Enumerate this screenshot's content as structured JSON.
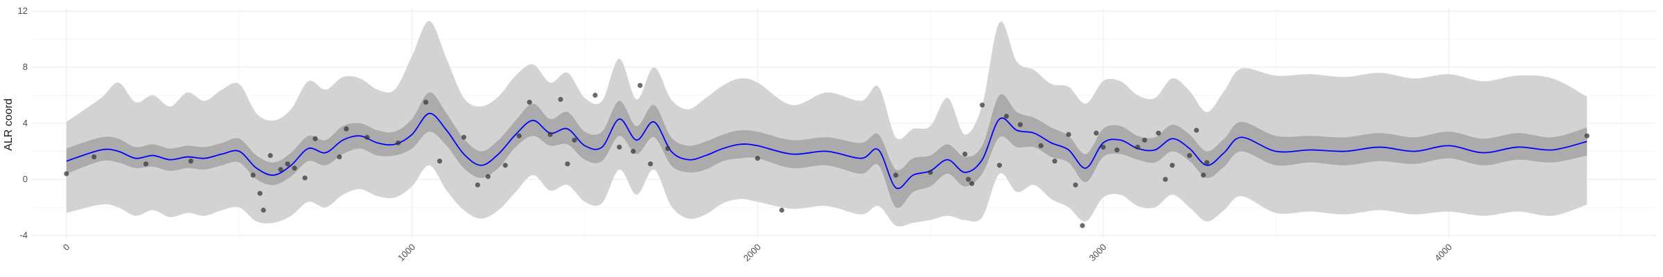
{
  "chart_data": {
    "type": "line",
    "title": "",
    "xlabel": "",
    "ylabel": "ALR coord",
    "xlim": [
      -100,
      4600
    ],
    "ylim": [
      -4.2,
      12.2
    ],
    "x_ticks": [
      0,
      1000,
      2000,
      3000,
      4000
    ],
    "y_ticks": [
      -4,
      0,
      4,
      8,
      12
    ],
    "grid": true,
    "colors": {
      "median_line": "#0000ff",
      "inner_band": "#ababab",
      "outer_band": "#d3d3d3",
      "points": "#333333"
    },
    "series": [
      {
        "role": "median",
        "x": [
          0,
          100,
          150,
          200,
          250,
          300,
          350,
          400,
          450,
          500,
          550,
          600,
          650,
          700,
          750,
          800,
          850,
          900,
          950,
          1000,
          1050,
          1100,
          1150,
          1200,
          1250,
          1300,
          1350,
          1400,
          1450,
          1500,
          1550,
          1600,
          1650,
          1700,
          1750,
          1800,
          1850,
          1900,
          1950,
          2000,
          2100,
          2200,
          2300,
          2350,
          2400,
          2450,
          2500,
          2550,
          2600,
          2650,
          2700,
          2750,
          2800,
          2850,
          2900,
          2950,
          3000,
          3050,
          3100,
          3150,
          3200,
          3250,
          3300,
          3350,
          3400,
          3500,
          3600,
          3700,
          3800,
          3900,
          4000,
          4100,
          4200,
          4300,
          4400
        ],
        "y": [
          1.3,
          2.1,
          2.0,
          1.5,
          1.7,
          1.4,
          1.6,
          1.5,
          1.8,
          2.0,
          0.8,
          0.3,
          1.0,
          2.2,
          1.9,
          2.8,
          3.1,
          2.6,
          2.5,
          3.2,
          4.7,
          3.5,
          1.8,
          1.0,
          1.8,
          3.2,
          4.2,
          3.3,
          3.6,
          2.4,
          2.3,
          4.3,
          2.8,
          4.1,
          2.0,
          1.4,
          1.7,
          2.2,
          2.5,
          2.4,
          1.8,
          2.0,
          1.5,
          2.1,
          -0.6,
          0.3,
          0.6,
          1.4,
          0.5,
          1.4,
          4.3,
          3.5,
          3.3,
          2.6,
          2.1,
          0.8,
          2.6,
          2.8,
          2.2,
          2.1,
          2.9,
          2.2,
          1.0,
          1.9,
          3.0,
          2.0,
          2.1,
          2.0,
          2.3,
          2.0,
          2.4,
          1.9,
          2.3,
          2.1,
          2.7
        ]
      },
      {
        "role": "inner_interval",
        "x": [
          0,
          100,
          150,
          200,
          250,
          300,
          350,
          400,
          450,
          500,
          550,
          600,
          650,
          700,
          750,
          800,
          850,
          900,
          950,
          1000,
          1050,
          1100,
          1150,
          1200,
          1250,
          1300,
          1350,
          1400,
          1450,
          1500,
          1550,
          1600,
          1650,
          1700,
          1750,
          1800,
          1850,
          1900,
          1950,
          2000,
          2100,
          2200,
          2300,
          2350,
          2400,
          2450,
          2500,
          2550,
          2600,
          2650,
          2700,
          2750,
          2800,
          2850,
          2900,
          2950,
          3000,
          3050,
          3100,
          3150,
          3200,
          3250,
          3300,
          3350,
          3400,
          3500,
          3600,
          3700,
          3800,
          3900,
          4000,
          4100,
          4200,
          4300,
          4400
        ],
        "low": [
          0.4,
          1.3,
          1.2,
          0.8,
          0.9,
          0.6,
          0.8,
          0.7,
          1.0,
          1.2,
          0.0,
          -0.4,
          0.2,
          1.3,
          1.0,
          1.8,
          2.2,
          1.7,
          1.7,
          2.2,
          3.4,
          2.4,
          0.8,
          0.1,
          0.8,
          2.3,
          3.1,
          2.4,
          2.5,
          1.4,
          1.3,
          3.1,
          1.8,
          3.0,
          1.0,
          0.5,
          0.7,
          1.3,
          1.5,
          1.5,
          0.8,
          1.0,
          0.4,
          1.0,
          -2.0,
          -0.9,
          -0.5,
          0.4,
          -0.5,
          0.4,
          3.0,
          2.3,
          2.3,
          1.6,
          1.2,
          -0.2,
          1.6,
          1.8,
          1.4,
          1.2,
          2.0,
          1.3,
          0.1,
          0.9,
          2.0,
          1.0,
          1.2,
          1.0,
          1.3,
          1.1,
          1.5,
          1.0,
          1.4,
          1.2,
          1.7
        ],
        "high": [
          2.2,
          3.0,
          2.9,
          2.3,
          2.5,
          2.2,
          2.4,
          2.3,
          2.6,
          2.9,
          1.7,
          1.2,
          1.9,
          3.1,
          2.8,
          3.8,
          4.0,
          3.5,
          3.4,
          4.3,
          6.2,
          4.7,
          2.9,
          2.0,
          2.8,
          4.2,
          5.4,
          4.3,
          4.8,
          3.4,
          3.4,
          5.6,
          3.8,
          5.3,
          3.0,
          2.4,
          2.7,
          3.2,
          3.5,
          3.4,
          2.8,
          3.0,
          2.6,
          3.2,
          0.7,
          1.5,
          1.7,
          2.5,
          1.6,
          2.4,
          6.0,
          4.8,
          4.4,
          3.7,
          3.1,
          1.8,
          3.6,
          3.8,
          3.1,
          3.0,
          3.9,
          3.2,
          2.0,
          2.9,
          4.1,
          3.1,
          3.1,
          3.0,
          3.3,
          3.0,
          3.4,
          2.9,
          3.3,
          3.0,
          3.7
        ]
      },
      {
        "role": "outer_interval",
        "x": [
          0,
          100,
          150,
          200,
          250,
          300,
          350,
          400,
          450,
          500,
          550,
          600,
          650,
          700,
          750,
          800,
          850,
          900,
          950,
          1000,
          1050,
          1100,
          1150,
          1200,
          1250,
          1300,
          1350,
          1400,
          1450,
          1500,
          1550,
          1600,
          1650,
          1700,
          1750,
          1800,
          1850,
          1900,
          1950,
          2000,
          2100,
          2200,
          2300,
          2350,
          2400,
          2450,
          2500,
          2550,
          2600,
          2650,
          2700,
          2750,
          2800,
          2850,
          2900,
          2950,
          3000,
          3050,
          3100,
          3150,
          3200,
          3250,
          3300,
          3350,
          3400,
          3500,
          3600,
          3700,
          3800,
          3900,
          4000,
          4100,
          4200,
          4300,
          4400
        ],
        "low": [
          -2.4,
          -1.8,
          -2.0,
          -2.6,
          -2.2,
          -2.7,
          -2.4,
          -2.6,
          -2.2,
          -2.0,
          -3.0,
          -3.1,
          -2.6,
          -1.6,
          -2.0,
          -1.1,
          -0.7,
          -1.2,
          -1.3,
          -0.5,
          1.0,
          -0.8,
          -2.2,
          -2.8,
          -2.2,
          -0.9,
          0.3,
          -0.8,
          -0.4,
          -1.6,
          -1.7,
          0.7,
          -1.1,
          0.7,
          -1.9,
          -2.8,
          -2.5,
          -1.7,
          -1.4,
          -1.6,
          -2.1,
          -1.9,
          -2.5,
          -1.9,
          -3.3,
          -3.1,
          -2.9,
          -2.6,
          -2.9,
          -2.7,
          0.4,
          -0.9,
          -0.4,
          -1.4,
          -2.0,
          -3.0,
          -1.3,
          -1.1,
          -1.9,
          -2.0,
          -1.1,
          -2.0,
          -3.0,
          -2.2,
          -1.2,
          -2.4,
          -2.3,
          -2.5,
          -2.2,
          -2.5,
          -2.3,
          -2.6,
          -2.3,
          -2.6,
          -1.8
        ],
        "high": [
          4.1,
          5.8,
          6.9,
          5.5,
          6.0,
          5.2,
          6.2,
          5.6,
          6.4,
          6.8,
          4.7,
          4.2,
          5.0,
          7.0,
          6.4,
          7.3,
          7.2,
          6.4,
          6.4,
          8.8,
          11.3,
          8.6,
          5.8,
          5.2,
          5.9,
          7.4,
          8.2,
          6.9,
          7.6,
          5.8,
          5.6,
          8.6,
          5.7,
          8.0,
          5.7,
          5.0,
          5.8,
          6.7,
          7.2,
          6.9,
          5.3,
          6.2,
          5.6,
          6.6,
          3.0,
          3.6,
          3.8,
          5.8,
          3.2,
          5.3,
          11.2,
          8.4,
          7.8,
          6.8,
          6.6,
          5.4,
          7.0,
          7.0,
          6.0,
          5.8,
          7.2,
          6.3,
          4.8,
          6.3,
          7.9,
          7.4,
          7.5,
          7.3,
          7.6,
          7.2,
          7.5,
          7.0,
          7.4,
          7.2,
          5.9
        ]
      },
      {
        "role": "observations",
        "x": [
          0,
          80,
          230,
          360,
          540,
          560,
          570,
          590,
          620,
          640,
          660,
          690,
          720,
          790,
          810,
          870,
          960,
          1040,
          1080,
          1150,
          1190,
          1220,
          1270,
          1310,
          1340,
          1400,
          1430,
          1450,
          1470,
          1530,
          1600,
          1640,
          1660,
          1690,
          1740,
          2000,
          2070,
          2400,
          2500,
          2600,
          2610,
          2620,
          2650,
          2700,
          2720,
          2760,
          2820,
          2860,
          2900,
          2920,
          2940,
          2980,
          3000,
          3040,
          3100,
          3120,
          3160,
          3180,
          3200,
          3250,
          3270,
          3290,
          3300,
          4400
        ],
        "y": [
          0.4,
          1.6,
          1.1,
          1.3,
          0.3,
          -1.0,
          -2.2,
          1.7,
          0.7,
          1.1,
          0.8,
          0.1,
          2.9,
          1.6,
          3.6,
          3.0,
          2.6,
          5.5,
          1.3,
          3.0,
          -0.4,
          0.2,
          1.0,
          3.1,
          5.5,
          3.2,
          5.7,
          1.1,
          2.8,
          6.0,
          2.3,
          2.0,
          6.7,
          1.1,
          2.2,
          1.5,
          -2.2,
          0.3,
          0.5,
          1.8,
          0.0,
          -0.3,
          5.3,
          1.0,
          4.5,
          3.9,
          2.4,
          1.3,
          3.2,
          -0.4,
          -3.3,
          3.3,
          2.3,
          2.1,
          2.3,
          2.8,
          3.3,
          0.0,
          1.0,
          1.7,
          3.5,
          0.3,
          1.2,
          3.1
        ]
      }
    ]
  }
}
